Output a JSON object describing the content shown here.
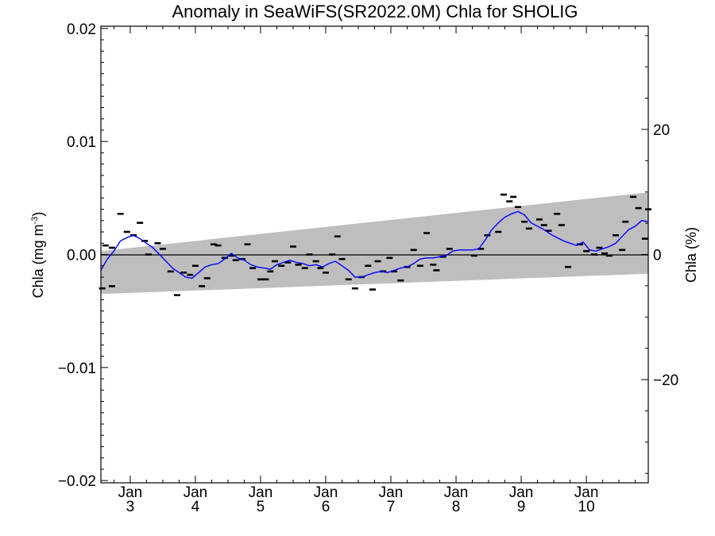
{
  "chart_data": {
    "type": "line",
    "title": "Anomaly in SeaWiFS(SR2022.0M) Chla for SHOLIG",
    "ylabel_left": {
      "main": "Chla (mg m",
      "sup": "-3",
      "end": ")"
    },
    "ylabel_right": "Chla (%)",
    "xlim": [
      2.55,
      10.95
    ],
    "ylim": [
      -0.0202,
      0.0202
    ],
    "y_right_lim": [
      -36.5,
      36.5
    ],
    "x_ticks": [
      {
        "value": 3.0,
        "top": "Jan",
        "bottom": "3"
      },
      {
        "value": 4.0,
        "top": "Jan",
        "bottom": "4"
      },
      {
        "value": 5.0,
        "top": "Jan",
        "bottom": "5"
      },
      {
        "value": 6.0,
        "top": "Jan",
        "bottom": "6"
      },
      {
        "value": 7.0,
        "top": "Jan",
        "bottom": "7"
      },
      {
        "value": 8.0,
        "top": "Jan",
        "bottom": "8"
      },
      {
        "value": 9.0,
        "top": "Jan",
        "bottom": "9"
      },
      {
        "value": 10.0,
        "top": "Jan",
        "bottom": "10"
      }
    ],
    "y_ticks_left": [
      {
        "value": 0.02,
        "label": "0.02"
      },
      {
        "value": 0.01,
        "label": "0.01"
      },
      {
        "value": 0.0,
        "label": "0.00"
      },
      {
        "value": -0.01,
        "label": "−0.01"
      },
      {
        "value": -0.02,
        "label": "−0.02"
      }
    ],
    "y_ticks_right": [
      {
        "value": 20,
        "label": "20"
      },
      {
        "value": 0,
        "label": "0"
      },
      {
        "value": -20,
        "label": "−20"
      }
    ],
    "zero_line": 0.0,
    "band": {
      "upper": [
        [
          2.55,
          0.0003
        ],
        [
          10.95,
          0.0055
        ]
      ],
      "lower": [
        [
          2.55,
          -0.0035
        ],
        [
          10.95,
          -0.0017
        ]
      ],
      "color": "#bebebe"
    },
    "series": [
      {
        "kind": "line",
        "color": "#0000ff",
        "points": [
          [
            2.55,
            -0.0014
          ],
          [
            2.65,
            -0.0004
          ],
          [
            2.75,
            0.0003
          ],
          [
            2.85,
            0.0012
          ],
          [
            2.95,
            0.0015
          ],
          [
            3.05,
            0.0017
          ],
          [
            3.15,
            0.0014
          ],
          [
            3.25,
            0.001
          ],
          [
            3.35,
            0.0006
          ],
          [
            3.45,
            0.0
          ],
          [
            3.55,
            -0.0006
          ],
          [
            3.65,
            -0.0012
          ],
          [
            3.75,
            -0.0016
          ],
          [
            3.85,
            -0.002
          ],
          [
            3.95,
            -0.0021
          ],
          [
            4.05,
            -0.0016
          ],
          [
            4.15,
            -0.0011
          ],
          [
            4.25,
            -0.0009
          ],
          [
            4.35,
            -0.0008
          ],
          [
            4.45,
            -0.0004
          ],
          [
            4.55,
            0.0001
          ],
          [
            4.65,
            -0.0003
          ],
          [
            4.75,
            -0.0005
          ],
          [
            4.85,
            -0.0009
          ],
          [
            4.95,
            -0.0011
          ],
          [
            5.05,
            -0.0012
          ],
          [
            5.15,
            -0.0013
          ],
          [
            5.25,
            -0.0009
          ],
          [
            5.35,
            -0.0007
          ],
          [
            5.45,
            -0.0005
          ],
          [
            5.55,
            -0.0007
          ],
          [
            5.65,
            -0.0008
          ],
          [
            5.75,
            -0.001
          ],
          [
            5.85,
            -0.0009
          ],
          [
            5.95,
            -0.0011
          ],
          [
            6.05,
            -0.0008
          ],
          [
            6.15,
            -0.0006
          ],
          [
            6.25,
            -0.001
          ],
          [
            6.35,
            -0.0014
          ],
          [
            6.45,
            -0.002
          ],
          [
            6.55,
            -0.002
          ],
          [
            6.65,
            -0.0018
          ],
          [
            6.75,
            -0.0016
          ],
          [
            6.85,
            -0.0015
          ],
          [
            6.95,
            -0.0016
          ],
          [
            7.05,
            -0.0014
          ],
          [
            7.15,
            -0.0012
          ],
          [
            7.25,
            -0.0011
          ],
          [
            7.35,
            -0.0008
          ],
          [
            7.45,
            -0.0004
          ],
          [
            7.55,
            -0.0003
          ],
          [
            7.65,
            -0.0003
          ],
          [
            7.75,
            -0.0002
          ],
          [
            7.85,
            -0.0001
          ],
          [
            7.95,
            0.0003
          ],
          [
            8.05,
            0.0004
          ],
          [
            8.15,
            0.0004
          ],
          [
            8.25,
            0.0004
          ],
          [
            8.35,
            0.0005
          ],
          [
            8.45,
            0.0013
          ],
          [
            8.55,
            0.0022
          ],
          [
            8.65,
            0.0028
          ],
          [
            8.75,
            0.0033
          ],
          [
            8.85,
            0.0036
          ],
          [
            8.95,
            0.0038
          ],
          [
            9.05,
            0.0035
          ],
          [
            9.15,
            0.0028
          ],
          [
            9.25,
            0.0025
          ],
          [
            9.35,
            0.0022
          ],
          [
            9.45,
            0.0018
          ],
          [
            9.55,
            0.0015
          ],
          [
            9.65,
            0.0012
          ],
          [
            9.75,
            0.001
          ],
          [
            9.85,
            0.0008
          ],
          [
            9.95,
            0.0011
          ],
          [
            10.05,
            0.0004
          ],
          [
            10.15,
            0.0003
          ],
          [
            10.25,
            0.0005
          ],
          [
            10.35,
            0.0007
          ],
          [
            10.45,
            0.001
          ],
          [
            10.55,
            0.0016
          ],
          [
            10.65,
            0.0022
          ],
          [
            10.75,
            0.0025
          ],
          [
            10.85,
            0.003
          ],
          [
            10.95,
            0.0029
          ]
        ]
      },
      {
        "kind": "markers",
        "color": "#000000",
        "points": [
          [
            2.57,
            -0.003
          ],
          [
            2.62,
            0.0008
          ],
          [
            2.72,
            -0.0028
          ],
          [
            2.72,
            0.0006
          ],
          [
            2.85,
            0.0036
          ],
          [
            2.95,
            0.002
          ],
          [
            3.05,
            0.0017
          ],
          [
            3.15,
            0.0028
          ],
          [
            3.22,
            0.0012
          ],
          [
            3.28,
            0.0
          ],
          [
            3.42,
            0.001
          ],
          [
            3.5,
            0.0005
          ],
          [
            3.62,
            -0.0015
          ],
          [
            3.72,
            -0.0036
          ],
          [
            3.82,
            -0.0016
          ],
          [
            3.92,
            -0.0018
          ],
          [
            4.0,
            -0.001
          ],
          [
            4.1,
            -0.0028
          ],
          [
            4.18,
            -0.0021
          ],
          [
            4.28,
            0.0009
          ],
          [
            4.35,
            0.0008
          ],
          [
            4.45,
            -0.0003
          ],
          [
            4.55,
            -0.0001
          ],
          [
            4.62,
            -0.0005
          ],
          [
            4.72,
            -0.0004
          ],
          [
            4.8,
            0.0009
          ],
          [
            4.88,
            -0.0012
          ],
          [
            5.0,
            -0.0022
          ],
          [
            5.08,
            -0.0022
          ],
          [
            5.15,
            -0.0015
          ],
          [
            5.22,
            -0.0006
          ],
          [
            5.32,
            -0.001
          ],
          [
            5.42,
            -0.0007
          ],
          [
            5.5,
            0.0007
          ],
          [
            5.58,
            -0.0009
          ],
          [
            5.68,
            -0.0012
          ],
          [
            5.75,
            0.0
          ],
          [
            5.85,
            -0.0006
          ],
          [
            5.92,
            -0.0012
          ],
          [
            6.0,
            -0.0016
          ],
          [
            6.1,
            0.0
          ],
          [
            6.18,
            0.0016
          ],
          [
            6.25,
            -0.0004
          ],
          [
            6.35,
            -0.0022
          ],
          [
            6.45,
            -0.003
          ],
          [
            6.55,
            -0.002
          ],
          [
            6.65,
            -0.001
          ],
          [
            6.72,
            -0.0031
          ],
          [
            6.8,
            -0.0006
          ],
          [
            6.88,
            -0.0015
          ],
          [
            6.98,
            -0.0003
          ],
          [
            7.05,
            -0.0015
          ],
          [
            7.15,
            -0.0023
          ],
          [
            7.25,
            -0.0011
          ],
          [
            7.35,
            0.0004
          ],
          [
            7.45,
            -0.001
          ],
          [
            7.55,
            0.0019
          ],
          [
            7.65,
            -0.0009
          ],
          [
            7.7,
            -0.0014
          ],
          [
            7.8,
            -0.0002
          ],
          [
            7.9,
            0.0005
          ],
          [
            8.28,
            -0.0001
          ],
          [
            8.38,
            0.0005
          ],
          [
            8.48,
            0.0017
          ],
          [
            8.65,
            0.002
          ],
          [
            8.73,
            0.0053
          ],
          [
            8.82,
            0.0047
          ],
          [
            8.88,
            0.0051
          ],
          [
            8.95,
            0.0042
          ],
          [
            9.05,
            0.0029
          ],
          [
            9.12,
            0.0023
          ],
          [
            9.28,
            0.0031
          ],
          [
            9.35,
            0.0026
          ],
          [
            9.42,
            0.0021
          ],
          [
            9.55,
            0.0036
          ],
          [
            9.62,
            0.0026
          ],
          [
            9.72,
            -0.0011
          ],
          [
            9.9,
            0.0009
          ],
          [
            10.0,
            0.0003
          ],
          [
            10.12,
            0.0
          ],
          [
            10.2,
            0.0006
          ],
          [
            10.28,
            0.0001
          ],
          [
            10.35,
            -0.0001
          ],
          [
            10.45,
            0.0017
          ],
          [
            10.55,
            0.0004
          ],
          [
            10.6,
            0.0029
          ],
          [
            10.72,
            0.0051
          ],
          [
            10.8,
            0.0041
          ],
          [
            10.9,
            0.0014
          ],
          [
            10.95,
            0.004
          ]
        ]
      }
    ]
  }
}
